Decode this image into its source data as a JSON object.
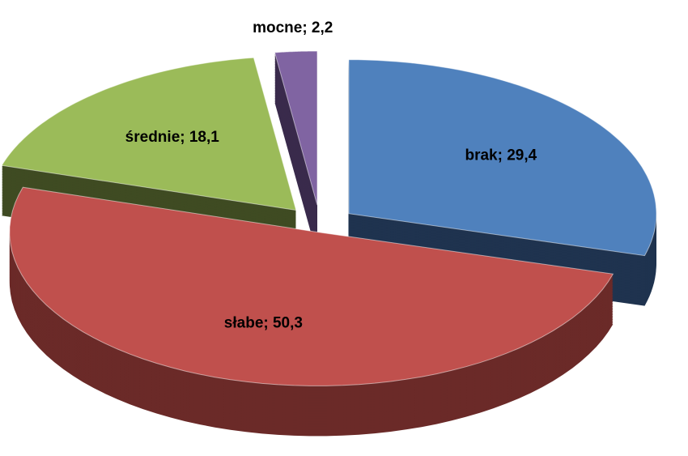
{
  "chart_data": {
    "type": "pie",
    "categories": [
      "brak",
      "słabe",
      "średnie",
      "mocne"
    ],
    "values": [
      29.4,
      50.3,
      18.1,
      2.2
    ],
    "value_labels": [
      "brak; 29,4",
      "słabe; 50,3",
      "średnie; 18,1",
      "mocne; 2,2"
    ],
    "colors": [
      "#4f81bd",
      "#c0504d",
      "#9bbb59",
      "#8064a2"
    ],
    "side_colors": [
      "#1f334f",
      "#6b2a28",
      "#3f4b22",
      "#3a2b4c"
    ]
  }
}
